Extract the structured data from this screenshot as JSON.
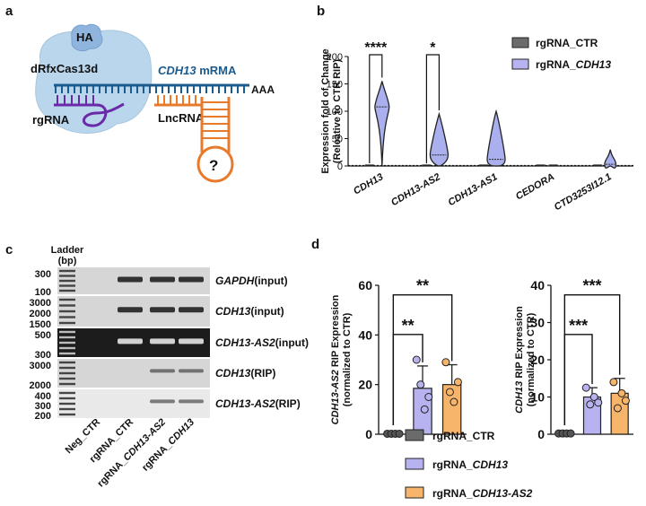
{
  "panels": {
    "a": "a",
    "b": "b",
    "c": "c",
    "d": "d"
  },
  "schematic": {
    "ha": "HA",
    "protein": "dRfxCas13d",
    "mrna_gene": "CDH13",
    "mrna_suffix": " mRMA",
    "poly_a": "AAA",
    "rgrna": "rgRNA",
    "lncrna": "LncRNA",
    "unknown": "?"
  },
  "colors": {
    "ctr": "#6b6b6b",
    "cdh13": "#b7b3f0",
    "as2": "#f6b56a",
    "violin_ctr": "#d9d9d9",
    "violin_cdh13": "#aab0ee",
    "schematic_blue": "#1b5b8e",
    "schematic_purple": "#6a2aa8",
    "schematic_orange": "#e87a2c",
    "cell_blue": "#b9d6ec"
  },
  "gel": {
    "ladder_title_1": "Ladder",
    "ladder_title_2": "(bp)",
    "lanes": [
      "Neg_CTR",
      "rgRNA_CTR",
      "rgRNA_CDH13-AS2",
      "rgRNA_CDH13"
    ],
    "lane_parts": [
      {
        "plain": "Neg_CTR",
        "ital": ""
      },
      {
        "plain": "rgRNA_CTR",
        "ital": ""
      },
      {
        "plain": "rgRNA_",
        "ital": "CDH13-AS2"
      },
      {
        "plain": "rgRNA_",
        "ital": "CDH13"
      }
    ],
    "rows": [
      {
        "gene": "GAPDH",
        "suffix": "(input)",
        "sizes": [
          "300",
          "100"
        ]
      },
      {
        "gene": "CDH13",
        "suffix": "(input)",
        "sizes": [
          "3000",
          "2000",
          "1500"
        ]
      },
      {
        "gene": "CDH13-AS2",
        "suffix": "(input)",
        "sizes": [
          "500",
          "300"
        ]
      },
      {
        "gene": "CDH13",
        "suffix": "(RIP)",
        "sizes": [
          "3000",
          "2000"
        ]
      },
      {
        "gene": "CDH13-AS2",
        "suffix": "(RIP)",
        "sizes": [
          "400",
          "300",
          "200"
        ]
      }
    ]
  },
  "chart_data": [
    {
      "panel": "b",
      "type": "violin",
      "ylabel": "Expression fold of Change (Releative to CTR RIP)",
      "ylim": [
        0,
        200
      ],
      "yticks": [
        0,
        50,
        100,
        150,
        200
      ],
      "categories": [
        "CDH13",
        "CDH13-AS2",
        "CDH13-AS1",
        "CEDORA",
        "CTD3253I12.1"
      ],
      "series": [
        {
          "name": "rgRNA_CTR",
          "median": [
            1,
            1,
            1,
            1,
            1
          ],
          "max": [
            1,
            1,
            1,
            1,
            1
          ]
        },
        {
          "name": "rgRNA_CDH13",
          "median": [
            108,
            20,
            12,
            1,
            3
          ],
          "max": [
            155,
            95,
            100,
            1,
            30
          ]
        }
      ],
      "significance": [
        {
          "category": "CDH13",
          "label": "****"
        },
        {
          "category": "CDH13-AS2",
          "label": "*"
        }
      ],
      "legend": [
        "rgRNA_CTR",
        "rgRNA_CDH13"
      ]
    },
    {
      "panel": "d-left",
      "type": "bar",
      "ylabel_gene": "CDH13-AS2",
      "ylabel_rest": " RIP Expression",
      "ylabel2": "(normalized to CTR)",
      "ylim": [
        0,
        60
      ],
      "yticks": [
        0,
        20,
        40,
        60
      ],
      "categories": [
        "rgRNA_CTR",
        "rgRNA_CDH13",
        "rgRNA_CDH13-AS2"
      ],
      "values": [
        0,
        18.5,
        20
      ],
      "errors": [
        0,
        9,
        8
      ],
      "points": [
        [
          0.2,
          0.2,
          0.2,
          0.2
        ],
        [
          30,
          20,
          10,
          15
        ],
        [
          29,
          17,
          13,
          21
        ]
      ],
      "significance": [
        {
          "from": 0,
          "to": 1,
          "label": "**"
        },
        {
          "from": 0,
          "to": 2,
          "label": "**"
        }
      ]
    },
    {
      "panel": "d-right",
      "type": "bar",
      "ylabel_gene": "CDH13",
      "ylabel_rest": " RIP Expression",
      "ylabel2": "(normalized to CTR)",
      "ylim": [
        0,
        40
      ],
      "yticks": [
        0,
        10,
        20,
        30,
        40
      ],
      "categories": [
        "rgRNA_CTR",
        "rgRNA_CDH13",
        "rgRNA_CDH13-AS2"
      ],
      "values": [
        0,
        10,
        11
      ],
      "errors": [
        0,
        2.5,
        4
      ],
      "points": [
        [
          0.2,
          0.2,
          0.2,
          0.2
        ],
        [
          12.5,
          8,
          10,
          8.5
        ],
        [
          14,
          7,
          11,
          9
        ]
      ],
      "significance": [
        {
          "from": 0,
          "to": 1,
          "label": "***"
        },
        {
          "from": 0,
          "to": 2,
          "label": "***"
        }
      ]
    }
  ],
  "legend_d": [
    {
      "plain": "rgRNA_CTR",
      "ital": ""
    },
    {
      "plain": "rgRNA_",
      "ital": "CDH13"
    },
    {
      "plain": "rgRNA_",
      "ital": "CDH13-AS2"
    }
  ]
}
